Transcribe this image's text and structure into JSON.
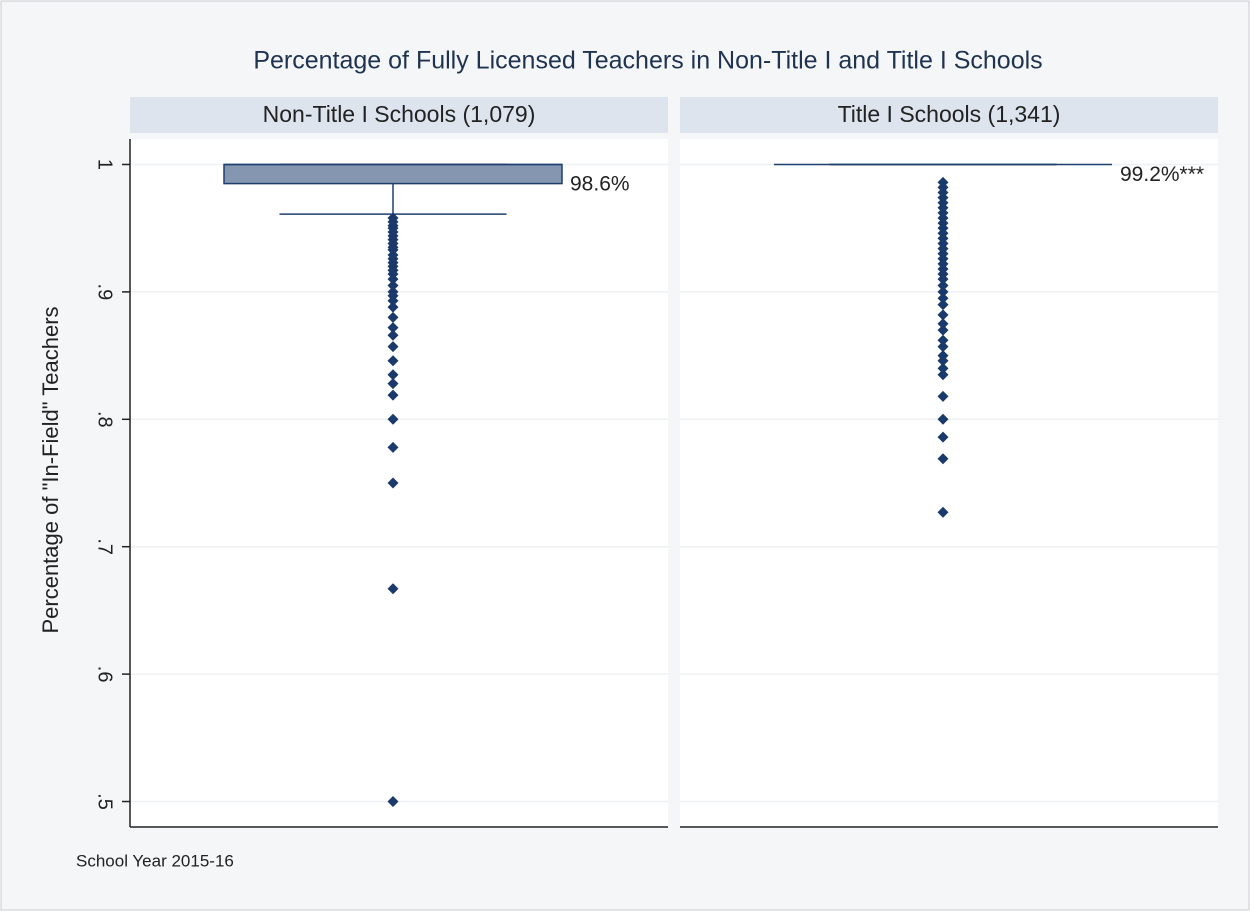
{
  "chart_data": {
    "type": "box",
    "title": "Percentage of Fully Licensed Teachers in Non-Title I and Title I Schools",
    "ylabel": "Percentage of \"In-Field\" Teachers",
    "note": "School Year 2015-16",
    "ylim": [
      0.48,
      1.02
    ],
    "yticks": [
      {
        "value": 0.5,
        "label": ".5"
      },
      {
        "value": 0.6,
        "label": ".6"
      },
      {
        "value": 0.7,
        "label": ".7"
      },
      {
        "value": 0.8,
        "label": ".8"
      },
      {
        "value": 0.9,
        "label": ".9"
      },
      1
    ],
    "grid": true,
    "color": "#8496b0",
    "marker_color": "#1a3a6b",
    "panels": [
      {
        "title": "Non-Title I Schools (1,079)",
        "q1": 0.985,
        "median": 1,
        "q3": 1,
        "whisker_low": 0.961,
        "whisker_high": 1,
        "stat": 0.986,
        "stat_label": "98.6%",
        "outliers": [
          0.958,
          0.955,
          0.952,
          0.95,
          0.947,
          0.944,
          0.941,
          0.938,
          0.935,
          0.933,
          0.929,
          0.926,
          0.923,
          0.92,
          0.917,
          0.914,
          0.91,
          0.905,
          0.9,
          0.897,
          0.893,
          0.888,
          0.88,
          0.872,
          0.866,
          0.857,
          0.846,
          0.835,
          0.828,
          0.819,
          0.8,
          0.778,
          0.75,
          0.667,
          0.5
        ]
      },
      {
        "title": "Title I Schools (1,341)",
        "q1": 1,
        "median": 1,
        "q3": 1,
        "whisker_low": 1,
        "whisker_high": 1,
        "stat": 0.992,
        "stat_label": "99.2%***",
        "outliers": [
          0.986,
          0.982,
          0.978,
          0.974,
          0.97,
          0.966,
          0.962,
          0.958,
          0.954,
          0.95,
          0.946,
          0.942,
          0.938,
          0.934,
          0.93,
          0.926,
          0.922,
          0.918,
          0.914,
          0.91,
          0.905,
          0.9,
          0.895,
          0.89,
          0.882,
          0.875,
          0.87,
          0.862,
          0.857,
          0.85,
          0.846,
          0.84,
          0.835,
          0.818,
          0.8,
          0.786,
          0.769,
          0.727
        ]
      }
    ]
  }
}
